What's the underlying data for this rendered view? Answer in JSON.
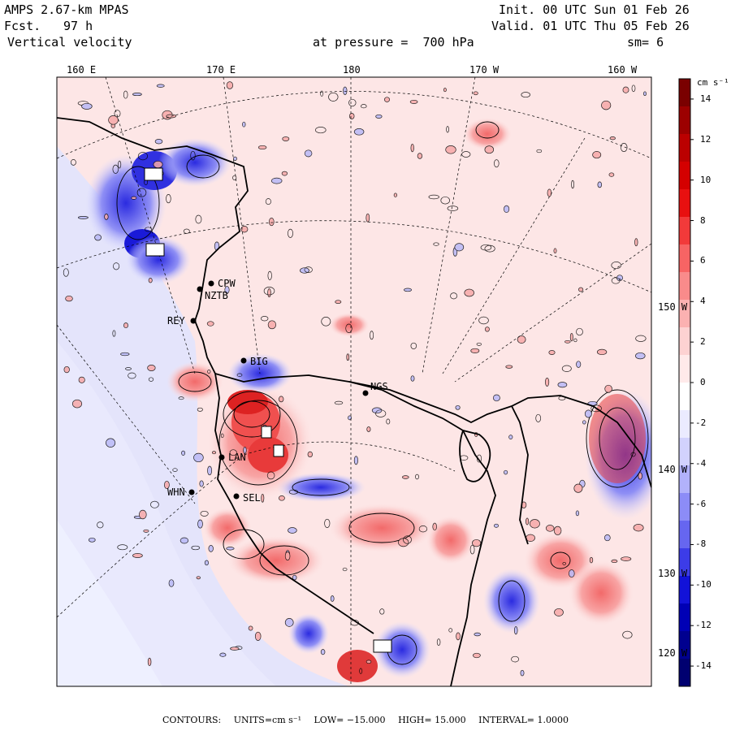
{
  "header": {
    "model": "AMPS 2.67-km MPAS",
    "forecast_label": "Fcst.",
    "forecast_hours": "97 h",
    "field": "Vertical velocity",
    "level": "at pressure =  700 hPa",
    "init": "Init. 00 UTC Sun 01 Feb 26",
    "valid": "Valid. 01 UTC Thu 05 Feb 26",
    "smoothing": "sm= 6"
  },
  "longitude_labels": [
    "160 E",
    "170 E",
    "180",
    "170 W",
    "160 W"
  ],
  "latitude_labels": [
    "150 W",
    "140 W",
    "130 W",
    "120 W"
  ],
  "stations": [
    {
      "id": "CPW",
      "label": "CPW"
    },
    {
      "id": "NZTB",
      "label": "NZTB"
    },
    {
      "id": "REY",
      "label": "REY"
    },
    {
      "id": "BIG",
      "label": "BIG"
    },
    {
      "id": "NGS",
      "label": "NGS"
    },
    {
      "id": "LAN",
      "label": "LAN"
    },
    {
      "id": "SEL",
      "label": "SEL"
    },
    {
      "id": "WHN",
      "label": "WHN"
    }
  ],
  "legend": {
    "units": "cm s⁻¹",
    "tick_labels": [
      "14",
      "12",
      "10",
      "8",
      "6",
      "4",
      "2",
      "0",
      "-2",
      "-4",
      "-6",
      "-8",
      "-10",
      "-12",
      "-14"
    ],
    "min": -15,
    "max": 15,
    "colors": [
      "#7a0000",
      "#9c0000",
      "#bb0000",
      "#d40000",
      "#e81010",
      "#f23a3a",
      "#f76464",
      "#f98b8b",
      "#fbb1b1",
      "#fdd2d2",
      "#ffeaea",
      "#ffffff",
      "#ebebff",
      "#d2d2fd",
      "#b2b2fb",
      "#8c8cf7",
      "#6666f0",
      "#3c3ce8",
      "#1212d8",
      "#0000b5",
      "#00008f",
      "#000070"
    ]
  },
  "footer": {
    "contours_label": "CONTOURS:",
    "units": "UNITS=cm s⁻¹",
    "low": "LOW= −15.000",
    "high": "HIGH= 15.000",
    "interval": "INTERVAL=  1.0000"
  }
}
